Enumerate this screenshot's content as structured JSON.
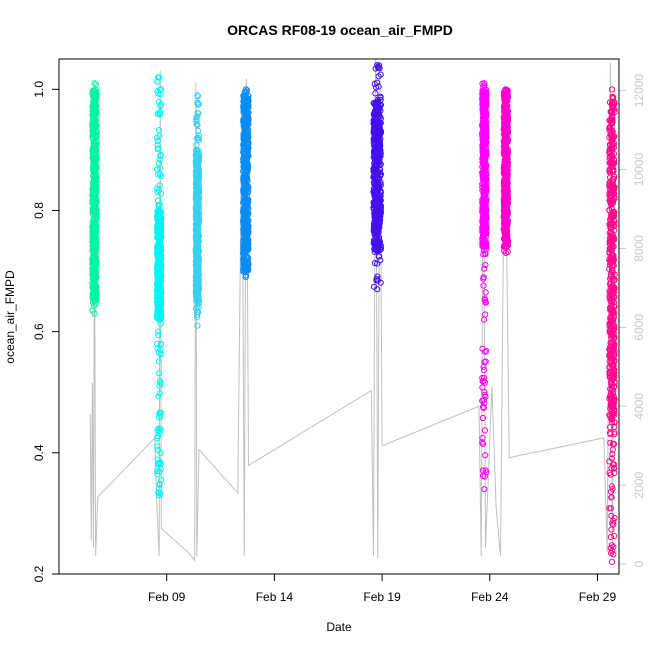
{
  "chart_data": {
    "type": "scatter",
    "title": "ORCAS RF08-19 ocean_air_FMPD",
    "xlabel": "Date",
    "ylabel": "ocean_air_FMPD",
    "xlim": [
      "2016-02-04",
      "2016-03-01"
    ],
    "ylim": [
      0.2,
      1.05
    ],
    "y2lim": [
      -250,
      12800
    ],
    "x_ticks": [
      {
        "date": "2016-02-09",
        "label": "Feb 09"
      },
      {
        "date": "2016-02-14",
        "label": "Feb 14"
      },
      {
        "date": "2016-02-19",
        "label": "Feb 19"
      },
      {
        "date": "2016-02-24",
        "label": "Feb 24"
      },
      {
        "date": "2016-02-29",
        "label": "Feb 29"
      }
    ],
    "y_ticks": [
      {
        "value": 0.2,
        "label": "0.2"
      },
      {
        "value": 0.4,
        "label": "0.4"
      },
      {
        "value": 0.6,
        "label": "0.6"
      },
      {
        "value": 0.8,
        "label": "0.8"
      },
      {
        "value": 1.0,
        "label": "1.0"
      }
    ],
    "y2_ticks": [
      {
        "value": 0,
        "label": "0"
      },
      {
        "value": 2000,
        "label": "2000"
      },
      {
        "value": 4000,
        "label": "4000"
      },
      {
        "value": 6000,
        "label": "6000"
      },
      {
        "value": 8000,
        "label": "8000"
      },
      {
        "value": 10000,
        "label": "10000"
      },
      {
        "value": 12000,
        "label": "12000"
      }
    ],
    "altitude_color": "#c0c0c0",
    "flights": [
      {
        "color": "#00f5a0",
        "x_start": 5.55,
        "x_end": 5.75,
        "fmpd_min": 0.63,
        "fmpd_max": 1.01,
        "bulk_lo": 0.65,
        "bulk_hi": 1.0
      },
      {
        "color": "#00f5f5",
        "x_start": 8.55,
        "x_end": 8.75,
        "fmpd_min": 0.33,
        "fmpd_max": 1.02,
        "bulk_lo": 0.62,
        "bulk_hi": 0.8
      },
      {
        "color": "#3ad0f0",
        "x_start": 10.35,
        "x_end": 10.5,
        "fmpd_min": 0.61,
        "fmpd_max": 0.99,
        "bulk_lo": 0.65,
        "bulk_hi": 0.9
      },
      {
        "color": "#0a8cf5",
        "x_start": 12.55,
        "x_end": 12.8,
        "fmpd_min": 0.69,
        "fmpd_max": 1.0,
        "bulk_lo": 0.7,
        "bulk_hi": 0.99
      },
      {
        "color": "#4410f0",
        "x_start": 18.6,
        "x_end": 18.95,
        "fmpd_min": 0.67,
        "fmpd_max": 1.04,
        "bulk_lo": 0.73,
        "bulk_hi": 0.98
      },
      {
        "color": "#ff00ff",
        "x_start": 23.65,
        "x_end": 23.85,
        "fmpd_min": 0.34,
        "fmpd_max": 1.01,
        "bulk_lo": 0.74,
        "bulk_hi": 1.0
      },
      {
        "color": "#ff00cc",
        "x_start": 24.65,
        "x_end": 24.85,
        "fmpd_min": 0.73,
        "fmpd_max": 1.0,
        "bulk_lo": 0.74,
        "bulk_hi": 1.0
      },
      {
        "color": "#ff0a8c",
        "x_start": 29.55,
        "x_end": 29.8,
        "fmpd_min": 0.22,
        "fmpd_max": 1.0,
        "bulk_lo": 0.45,
        "bulk_hi": 0.99
      }
    ],
    "altitude_track": [
      [
        5.45,
        3800
      ],
      [
        5.5,
        600
      ],
      [
        5.55,
        4600
      ],
      [
        5.6,
        400
      ],
      [
        5.65,
        9000
      ],
      [
        5.7,
        200
      ],
      [
        5.8,
        1700
      ],
      [
        8.45,
        3200
      ],
      [
        8.55,
        1400
      ],
      [
        8.65,
        200
      ],
      [
        8.7,
        12500
      ],
      [
        8.75,
        900
      ],
      [
        10.0,
        300
      ],
      [
        10.3,
        100
      ],
      [
        10.35,
        12200
      ],
      [
        10.4,
        200
      ],
      [
        10.5,
        2900
      ],
      [
        12.3,
        1800
      ],
      [
        12.5,
        12000
      ],
      [
        12.6,
        200
      ],
      [
        12.7,
        12300
      ],
      [
        12.8,
        2500
      ],
      [
        18.5,
        4400
      ],
      [
        18.6,
        200
      ],
      [
        18.7,
        12800
      ],
      [
        18.8,
        150
      ],
      [
        18.9,
        12400
      ],
      [
        19.0,
        3000
      ],
      [
        23.5,
        4000
      ],
      [
        23.6,
        200
      ],
      [
        23.7,
        12200
      ],
      [
        23.8,
        400
      ],
      [
        24.1,
        4500
      ],
      [
        24.3,
        1400
      ],
      [
        24.5,
        200
      ],
      [
        24.7,
        12100
      ],
      [
        24.9,
        2700
      ],
      [
        29.3,
        3200
      ],
      [
        29.45,
        300
      ],
      [
        29.6,
        12700
      ],
      [
        29.7,
        200
      ],
      [
        29.8,
        12000
      ]
    ]
  }
}
